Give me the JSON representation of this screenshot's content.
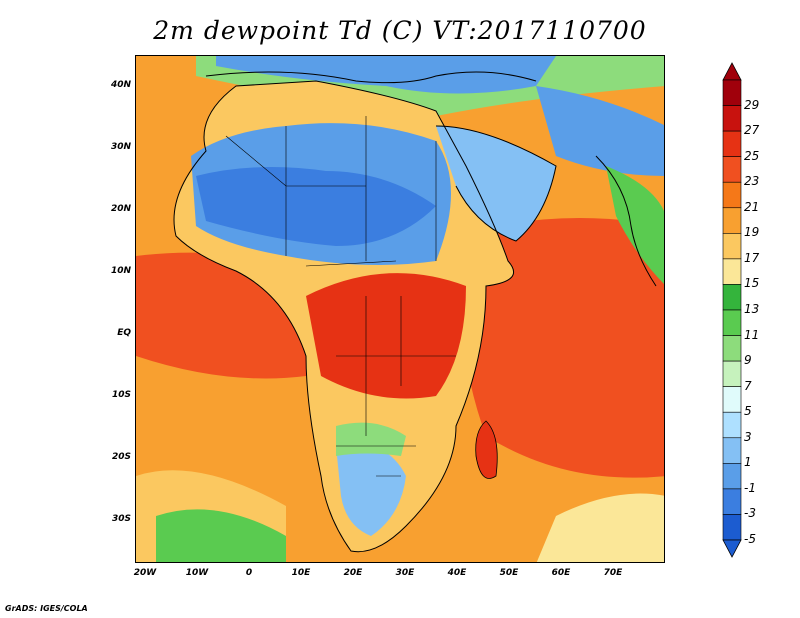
{
  "title": "2m dewpoint Td (C) VT:2017110700",
  "credit": "GrADS: IGES/COLA",
  "map": {
    "lon_range": [
      -23,
      80
    ],
    "lat_range": [
      -38,
      45
    ],
    "lat_labels": [
      "40N",
      "30N",
      "20N",
      "10N",
      "EQ",
      "10S",
      "20S",
      "30S"
    ],
    "lon_labels": [
      "20W",
      "10W",
      "0",
      "10E",
      "20E",
      "30E",
      "40E",
      "50E",
      "60E",
      "70E"
    ]
  },
  "colorbar": {
    "labels": [
      "29",
      "27",
      "25",
      "23",
      "21",
      "19",
      "17",
      "15",
      "13",
      "11",
      "9",
      "7",
      "5",
      "3",
      "1",
      "-1",
      "-3",
      "-5"
    ],
    "colors": [
      "#a0000b",
      "#c8120e",
      "#e63214",
      "#f05020",
      "#f57818",
      "#f8a030",
      "#fbc860",
      "#fbe798",
      "#34b43c",
      "#5acb50",
      "#8ddc7c",
      "#c6f2bd",
      "#e0fbfb",
      "#aee0ff",
      "#84c0f4",
      "#5a9ee8",
      "#3b7ee0",
      "#1c5cd0"
    ]
  }
}
